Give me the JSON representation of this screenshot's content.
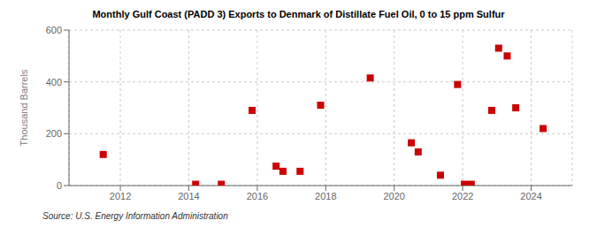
{
  "chart_data": {
    "type": "scatter",
    "title": "Monthly Gulf Coast (PADD 3) Exports to Denmark of Distillate Fuel Oil, 0 to 15 ppm Sulfur",
    "y_label": "Thousand Barrels",
    "annotations": [
      "Source: U.S. Energy Information Administration"
    ],
    "x": [
      2011.5,
      2014.2,
      2014.95,
      2015.85,
      2016.55,
      2016.75,
      2017.25,
      2017.85,
      2019.3,
      2020.5,
      2020.7,
      2021.35,
      2021.85,
      2022.05,
      2022.25,
      2022.85,
      2023.05,
      2023.3,
      2023.55,
      2024.35
    ],
    "values": [
      120,
      5,
      5,
      290,
      75,
      55,
      55,
      310,
      415,
      165,
      130,
      40,
      390,
      5,
      5,
      290,
      530,
      500,
      300,
      220
    ],
    "color": "#cc0000",
    "marker": "square",
    "xlim": [
      2010.5,
      2025.2
    ],
    "xticks": [
      2012,
      2014,
      2016,
      2018,
      2020,
      2022,
      2024
    ],
    "ylim": [
      0,
      600
    ],
    "yticks": [
      0,
      200,
      400,
      600
    ],
    "grid": true
  }
}
